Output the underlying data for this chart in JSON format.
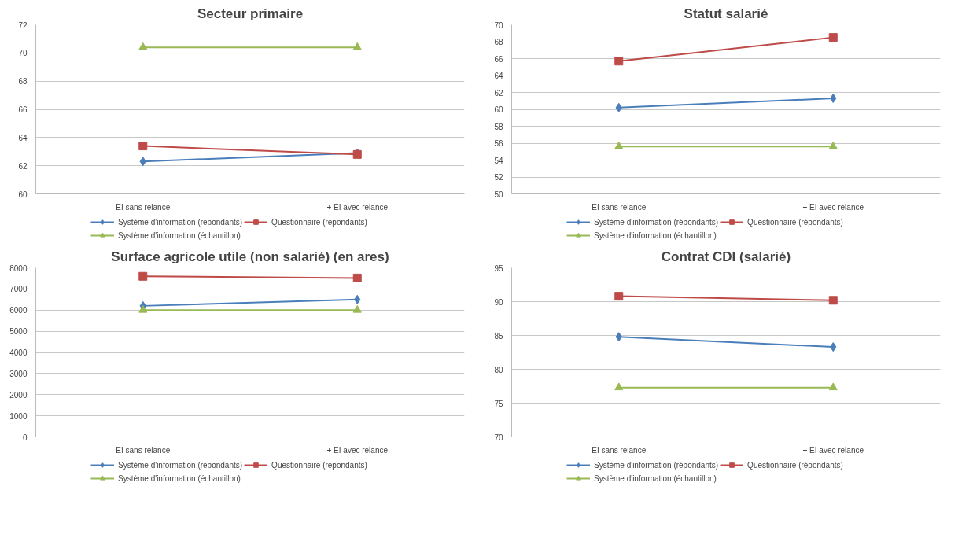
{
  "chart_data": [
    {
      "type": "line",
      "title": "Secteur primaire",
      "categories": [
        "EI sans relance",
        "+ EI avec relance"
      ],
      "ylim": [
        60,
        72
      ],
      "yticks": [
        60,
        62,
        64,
        66,
        68,
        70,
        72
      ],
      "grid": "y",
      "legend": "bottom",
      "series": [
        {
          "name": "Système d'information (répondants)",
          "color": "#4a7ebb",
          "marker": "diamond",
          "values": [
            62.3,
            62.9
          ]
        },
        {
          "name": "Questionnaire (répondants)",
          "color": "#be4b48",
          "marker": "square",
          "values": [
            63.4,
            62.8
          ]
        },
        {
          "name": "Système d'information (échantillon)",
          "color": "#98b954",
          "marker": "triangle",
          "values": [
            70.4,
            70.4
          ]
        }
      ]
    },
    {
      "type": "line",
      "title": "Statut salarié",
      "categories": [
        "EI sans relance",
        "+ EI avec relance"
      ],
      "ylim": [
        50,
        70
      ],
      "yticks": [
        50,
        52,
        54,
        56,
        58,
        60,
        62,
        64,
        66,
        68,
        70
      ],
      "grid": "y",
      "legend": "bottom",
      "series": [
        {
          "name": "Système d'information (répondants)",
          "color": "#4a7ebb",
          "marker": "diamond",
          "values": [
            60.2,
            61.3
          ]
        },
        {
          "name": "Questionnaire (répondants)",
          "color": "#be4b48",
          "marker": "square",
          "values": [
            65.7,
            68.5
          ]
        },
        {
          "name": "Système d'information (échantillon)",
          "color": "#98b954",
          "marker": "triangle",
          "values": [
            55.6,
            55.6
          ]
        }
      ]
    },
    {
      "type": "line",
      "title": "Surface agricole utile (non salarié) (en ares)",
      "categories": [
        "EI sans relance",
        "+ EI avec relance"
      ],
      "ylim": [
        0,
        8000
      ],
      "yticks": [
        0,
        1000,
        2000,
        3000,
        4000,
        5000,
        6000,
        7000,
        8000
      ],
      "grid": "y",
      "legend": "bottom",
      "series": [
        {
          "name": "Système d'information (répondants)",
          "color": "#4a7ebb",
          "marker": "diamond",
          "values": [
            6200,
            6500
          ]
        },
        {
          "name": "Questionnaire (répondants)",
          "color": "#be4b48",
          "marker": "square",
          "values": [
            7600,
            7520
          ]
        },
        {
          "name": "Système d'information (échantillon)",
          "color": "#98b954",
          "marker": "triangle",
          "values": [
            6000,
            6000
          ]
        }
      ]
    },
    {
      "type": "line",
      "title": "Contrat CDI (salarié)",
      "categories": [
        "EI sans relance",
        "+ EI avec relance"
      ],
      "ylim": [
        70,
        95
      ],
      "yticks": [
        70,
        75,
        80,
        85,
        90,
        95
      ],
      "grid": "y",
      "legend": "bottom",
      "series": [
        {
          "name": "Système d'information (répondants)",
          "color": "#4a7ebb",
          "marker": "diamond",
          "values": [
            84.8,
            83.3
          ]
        },
        {
          "name": "Questionnaire (répondants)",
          "color": "#be4b48",
          "marker": "square",
          "values": [
            90.8,
            90.2
          ]
        },
        {
          "name": "Système d'information (échantillon)",
          "color": "#98b954",
          "marker": "triangle",
          "values": [
            77.3,
            77.3
          ]
        }
      ]
    }
  ]
}
